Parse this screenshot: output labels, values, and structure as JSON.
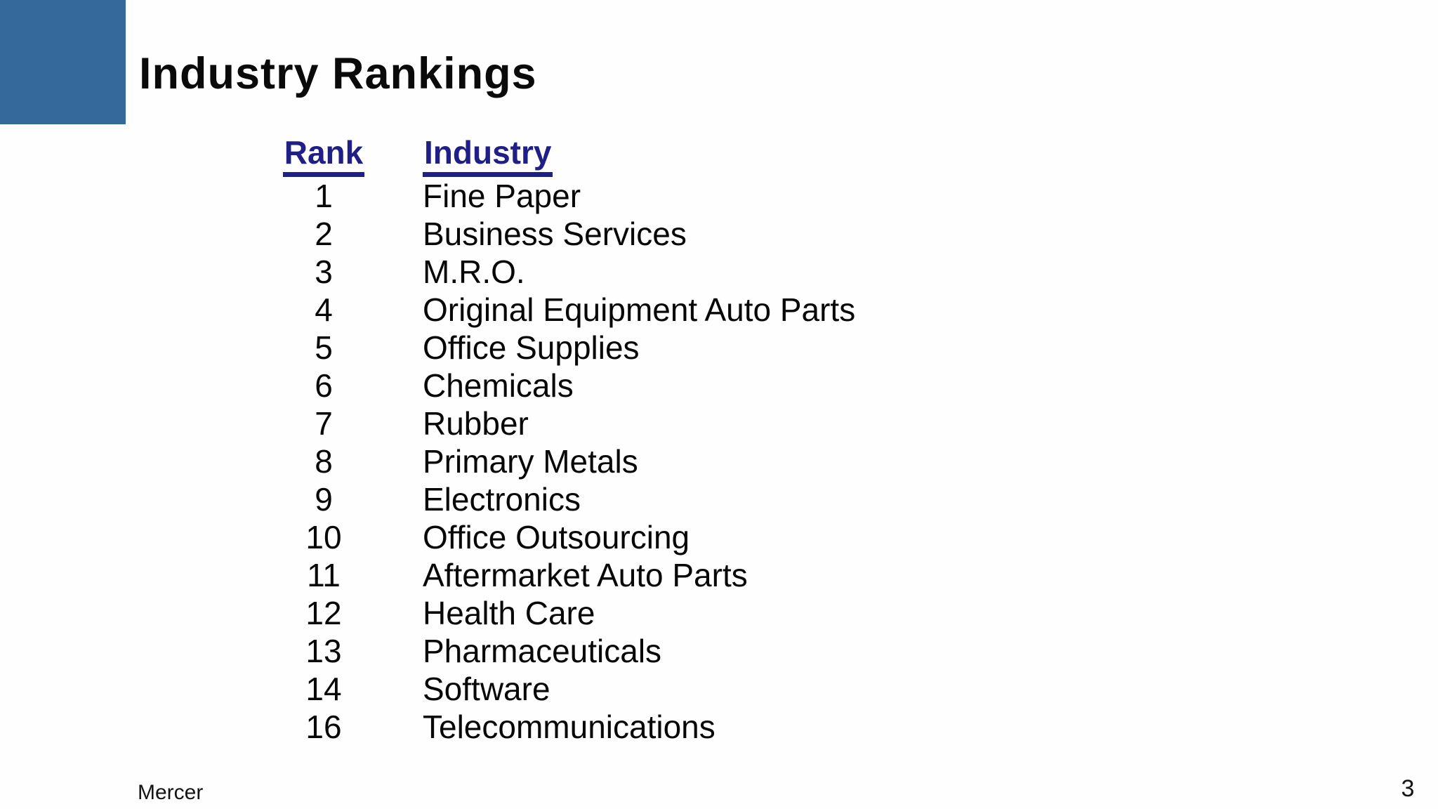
{
  "slide": {
    "title": "Industry Rankings",
    "footer": {
      "company": "Mercer",
      "page_number": "3"
    },
    "colors": {
      "accent_block": "#35689b",
      "table_header": "#1f1f85",
      "body_text": "#070707"
    }
  },
  "ranking_table": {
    "headers": {
      "rank": "Rank",
      "industry": "Industry"
    },
    "rows": [
      {
        "rank": "1",
        "industry": "Fine Paper"
      },
      {
        "rank": "2",
        "industry": "Business Services"
      },
      {
        "rank": "3",
        "industry": "M.R.O."
      },
      {
        "rank": "4",
        "industry": "Original Equipment Auto Parts"
      },
      {
        "rank": "5",
        "industry": "Office Supplies"
      },
      {
        "rank": "6",
        "industry": "Chemicals"
      },
      {
        "rank": "7",
        "industry": "Rubber"
      },
      {
        "rank": "8",
        "industry": "Primary Metals"
      },
      {
        "rank": "9",
        "industry": "Electronics"
      },
      {
        "rank": "10",
        "industry": "Office Outsourcing"
      },
      {
        "rank": "11",
        "industry": "Aftermarket Auto Parts"
      },
      {
        "rank": "12",
        "industry": "Health Care"
      },
      {
        "rank": "13",
        "industry": "Pharmaceuticals"
      },
      {
        "rank": "14",
        "industry": "Software"
      },
      {
        "rank": "16",
        "industry": "Telecommunications"
      }
    ]
  }
}
